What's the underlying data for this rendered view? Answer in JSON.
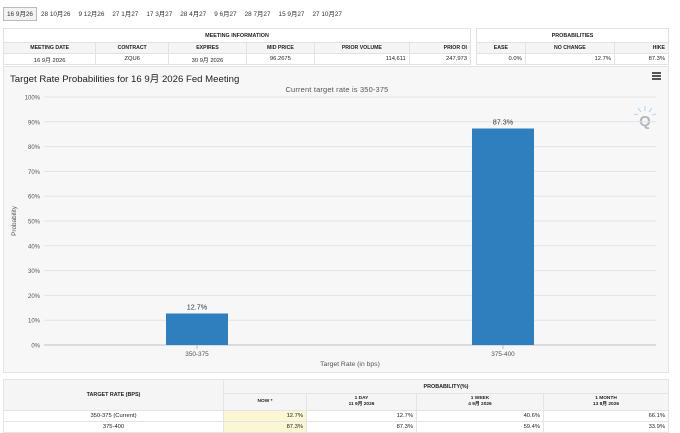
{
  "tabs": [
    "16 9月26",
    "28 10月26",
    "9 12月26",
    "27 1月27",
    "17 3月27",
    "28 4月27",
    "9 6月27",
    "28 7月27",
    "15 9月27",
    "27 10月27"
  ],
  "meeting_info": {
    "header": "MEETING INFORMATION",
    "columns": [
      "MEETING DATE",
      "CONTRACT",
      "EXPIRES",
      "MID PRICE",
      "PRIOR VOLUME",
      "PRIOR OI"
    ],
    "values": [
      "16 9月 2026",
      "ZQU6",
      "30 9月 2026",
      "96.2675",
      "114,611",
      "247,973"
    ]
  },
  "probabilities": {
    "header": "PROBABILITIES",
    "columns": [
      "EASE",
      "NO CHANGE",
      "HIKE"
    ],
    "values": [
      "0.0%",
      "12.7%",
      "87.3%"
    ]
  },
  "chart_data": {
    "type": "bar",
    "title": "Target Rate Probabilities for 16 9月 2026 Fed Meeting",
    "subtitle": "Current target rate is 350-375",
    "xlabel": "Target Rate (in bps)",
    "ylabel": "Probability",
    "categories": [
      "350-375",
      "375-400"
    ],
    "values": [
      12.7,
      87.3
    ],
    "data_labels": [
      "12.7%",
      "87.3%"
    ],
    "ylim": [
      0,
      100
    ],
    "yticks": [
      "0%",
      "10%",
      "20%",
      "30%",
      "40%",
      "50%",
      "60%",
      "70%",
      "80%",
      "90%",
      "100%"
    ],
    "grid": true,
    "bar_color": "#2f7ebd"
  },
  "bottom_table": {
    "left_header": "TARGET RATE (BPS)",
    "top_header": "PROBABILITY(%)",
    "subheaders": [
      {
        "label": "NOW *",
        "date": ""
      },
      {
        "label": "1 DAY",
        "date": "11 9月 2026"
      },
      {
        "label": "1 WEEK",
        "date": "4 9月 2026"
      },
      {
        "label": "1 MONTH",
        "date": "13 8月 2026"
      }
    ],
    "rows": [
      {
        "rate": "350-375 (Current)",
        "values": [
          "12.7%",
          "12.7%",
          "40.6%",
          "66.1%"
        ]
      },
      {
        "rate": "375-400",
        "values": [
          "87.3%",
          "87.3%",
          "59.4%",
          "33.9%"
        ]
      }
    ]
  }
}
